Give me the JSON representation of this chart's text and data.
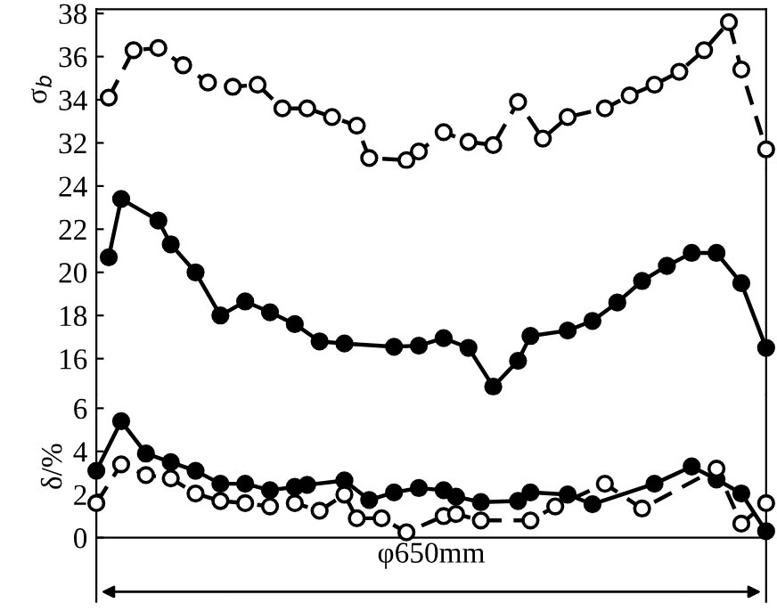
{
  "chart_data": [
    {
      "type": "line",
      "ylabel": "σ$_{b}$",
      "categories": [
        null,
        null,
        null,
        null,
        null,
        null,
        null,
        null,
        null,
        null,
        null,
        null,
        null,
        null,
        null,
        null,
        null,
        null,
        null,
        null,
        null,
        null,
        null,
        null,
        null,
        null,
        null,
        null,
        null,
        null,
        null,
        null,
        null,
        null,
        null,
        null,
        null,
        null,
        null,
        null,
        null,
        null,
        null,
        null,
        null,
        null,
        null,
        null,
        null,
        null,
        null,
        null,
        null,
        null,
        null
      ],
      "ylim": [
        30.8,
        38.2
      ],
      "yticks": [
        32,
        34,
        36,
        38
      ],
      "marker": "circle",
      "grid": false,
      "legend": false,
      "series": [
        {
          "color": "#000000",
          "line_style": "dashed",
          "values": [
            null,
            34.1,
            null,
            36.3,
            null,
            36.4,
            null,
            35.6,
            null,
            34.8,
            null,
            34.6,
            null,
            34.7,
            null,
            33.6,
            null,
            33.6,
            null,
            33.2,
            null,
            32.8,
            31.3,
            null,
            null,
            31.2,
            31.6,
            null,
            32.5,
            null,
            32.05,
            null,
            31.9,
            null,
            33.9,
            null,
            32.2,
            null,
            33.2,
            null,
            null,
            33.6,
            null,
            34.2,
            null,
            34.7,
            null,
            35.3,
            null,
            36.3,
            null,
            37.6,
            35.4,
            null,
            31.7
          ]
        }
      ]
    },
    {
      "type": "line",
      "categories": [
        null,
        null,
        null,
        null,
        null,
        null,
        null,
        null,
        null,
        null,
        null,
        null,
        null,
        null,
        null,
        null,
        null,
        null,
        null,
        null,
        null,
        null,
        null,
        null,
        null,
        null,
        null,
        null,
        null,
        null,
        null,
        null,
        null,
        null,
        null,
        null,
        null,
        null,
        null,
        null,
        null,
        null,
        null,
        null,
        null,
        null,
        null,
        null,
        null,
        null,
        null,
        null,
        null,
        null,
        null
      ],
      "ylim": [
        14.3,
        24.8
      ],
      "yticks": [
        16,
        18,
        20,
        22,
        24
      ],
      "marker": "circle",
      "grid": false,
      "legend": false,
      "series": [
        {
          "color": "#000000",
          "line_style": "solid",
          "values": [
            null,
            20.7,
            23.4,
            null,
            null,
            22.4,
            21.3,
            null,
            20.0,
            null,
            18.0,
            null,
            18.65,
            null,
            18.15,
            null,
            17.6,
            null,
            16.8,
            null,
            16.7,
            null,
            null,
            null,
            16.55,
            null,
            16.6,
            null,
            16.95,
            null,
            16.5,
            null,
            14.7,
            null,
            15.9,
            17.05,
            null,
            null,
            17.3,
            null,
            17.75,
            null,
            18.6,
            null,
            19.6,
            null,
            20.3,
            null,
            20.9,
            null,
            20.9,
            null,
            19.5,
            null,
            16.5
          ]
        }
      ]
    },
    {
      "type": "line",
      "ylabel": "δ/%",
      "categories": [
        null,
        null,
        null,
        null,
        null,
        null,
        null,
        null,
        null,
        null,
        null,
        null,
        null,
        null,
        null,
        null,
        null,
        null,
        null,
        null,
        null,
        null,
        null,
        null,
        null,
        null,
        null,
        null,
        null,
        null,
        null,
        null,
        null,
        null,
        null,
        null,
        null,
        null,
        null,
        null,
        null,
        null,
        null,
        null,
        null,
        null,
        null,
        null,
        null,
        null,
        null,
        null,
        null,
        null,
        null
      ],
      "ylim": [
        0,
        6.6
      ],
      "yticks": [
        0,
        2,
        4,
        6
      ],
      "marker": "circle",
      "grid": false,
      "legend": false,
      "annotations": [
        "φ650mm"
      ],
      "series": [
        {
          "color": "#000000",
          "line_style": "solid",
          "values": [
            3.1,
            null,
            5.4,
            null,
            3.9,
            null,
            3.5,
            null,
            3.1,
            null,
            2.5,
            null,
            2.5,
            null,
            2.2,
            null,
            2.35,
            2.45,
            null,
            null,
            2.65,
            null,
            1.75,
            null,
            2.1,
            null,
            2.3,
            null,
            2.2,
            1.9,
            null,
            1.65,
            null,
            null,
            1.7,
            2.1,
            null,
            null,
            2.0,
            null,
            1.55,
            null,
            null,
            null,
            null,
            2.5,
            null,
            null,
            3.3,
            null,
            2.7,
            null,
            2.05,
            null,
            0.3
          ]
        },
        {
          "color": "#000000",
          "line_style": "dashed",
          "values": [
            1.6,
            null,
            3.4,
            null,
            2.9,
            null,
            2.75,
            null,
            2.05,
            null,
            1.7,
            null,
            1.6,
            null,
            1.45,
            null,
            1.6,
            null,
            1.25,
            null,
            2.0,
            0.9,
            null,
            0.9,
            null,
            0.25,
            null,
            null,
            1.0,
            1.1,
            null,
            0.8,
            null,
            null,
            null,
            0.8,
            null,
            1.45,
            null,
            null,
            null,
            2.5,
            null,
            null,
            1.35,
            null,
            null,
            null,
            null,
            null,
            3.2,
            null,
            0.65,
            null,
            1.6
          ]
        }
      ]
    }
  ]
}
